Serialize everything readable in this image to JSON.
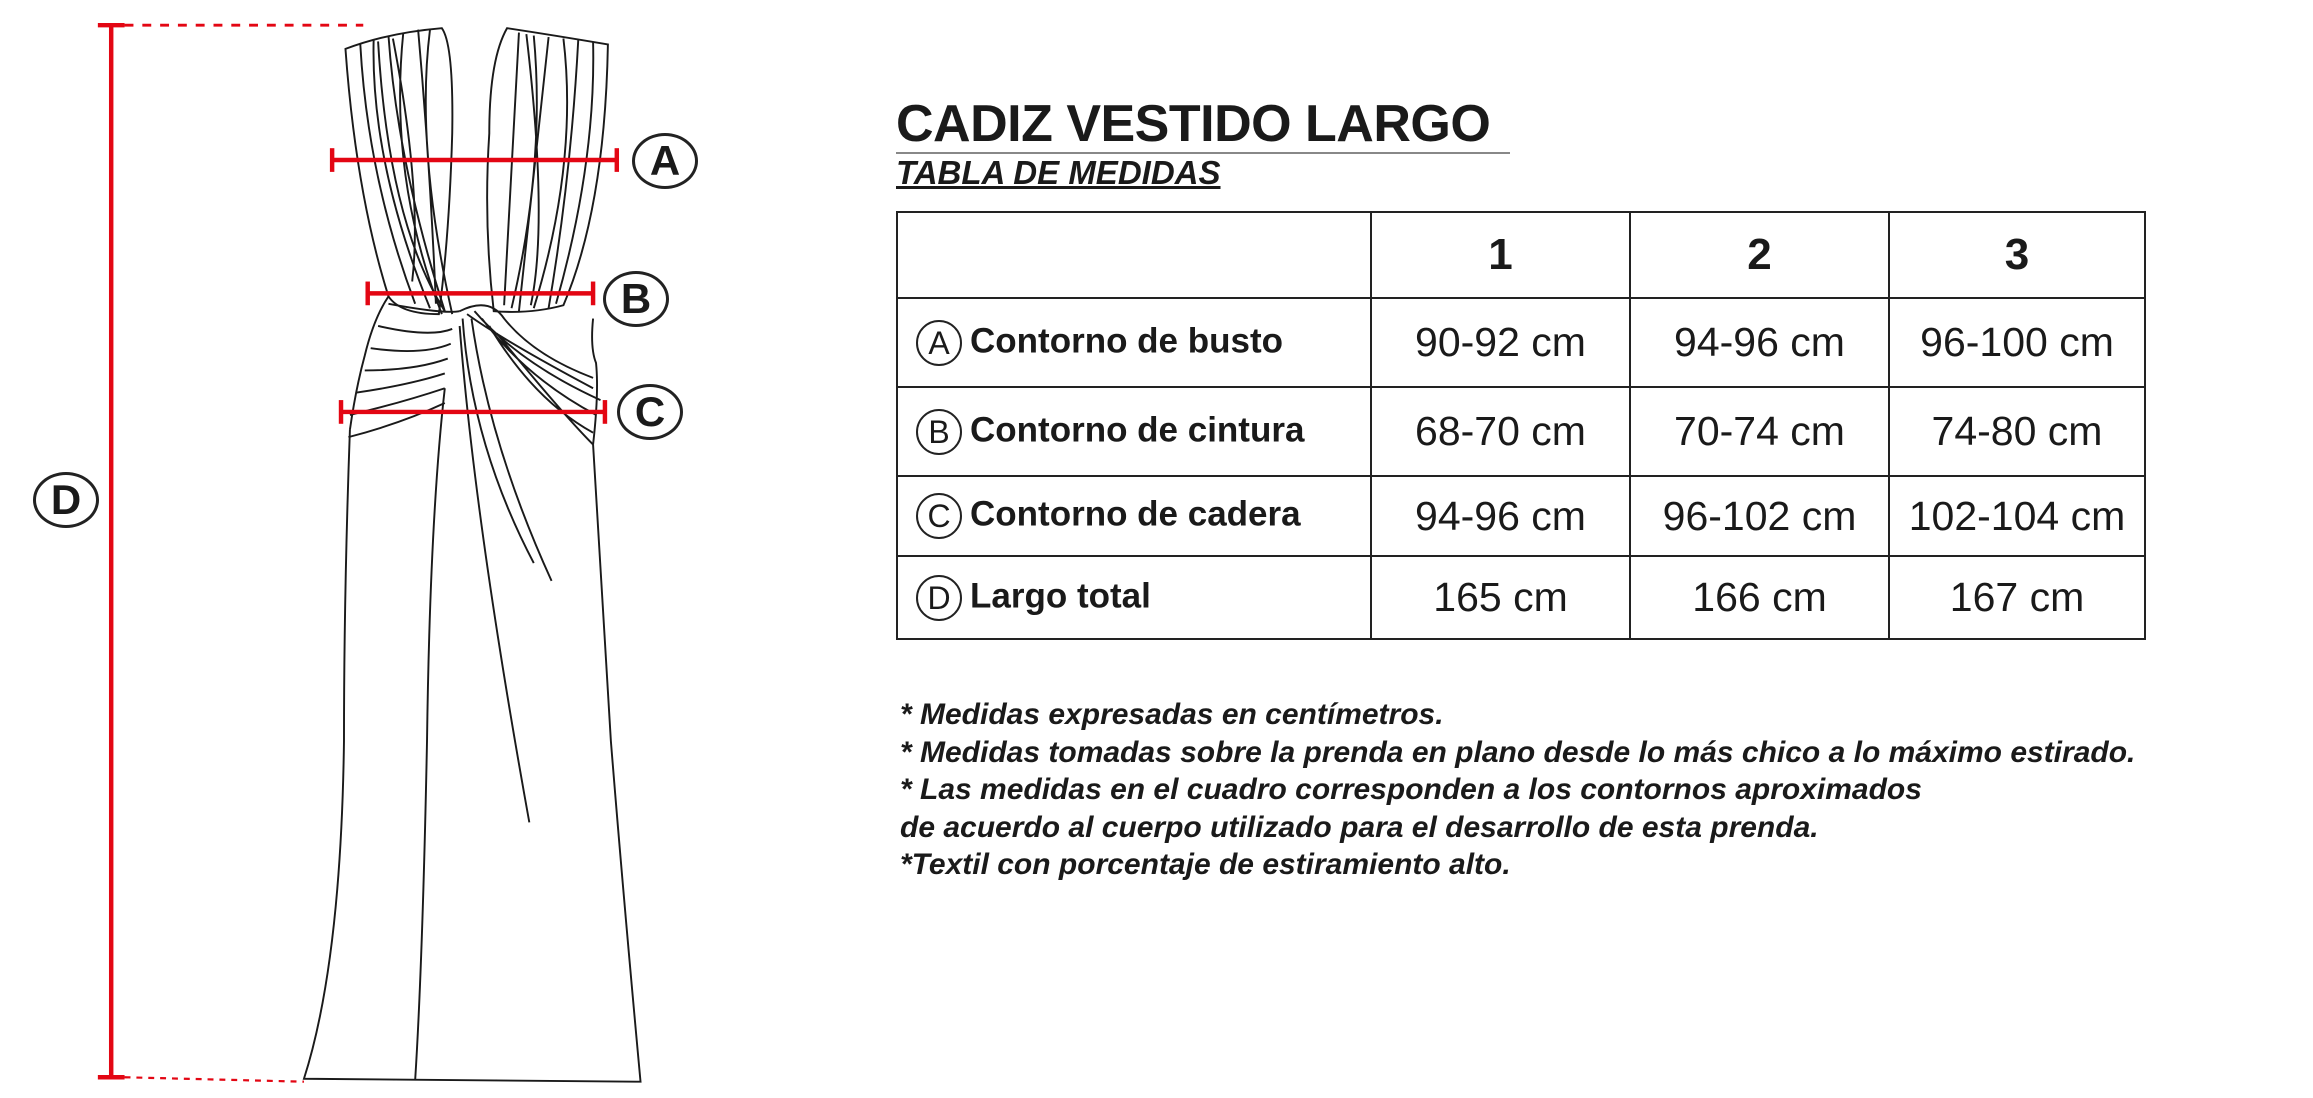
{
  "header": {
    "title": "CADIZ VESTIDO LARGO",
    "subtitle": "TABLA DE MEDIDAS"
  },
  "diagram": {
    "labels": [
      "A",
      "B",
      "C",
      "D"
    ],
    "measure_line_color": "#e30613",
    "outline_color": "#1a1a1a"
  },
  "table": {
    "columns": [
      "",
      "1",
      "2",
      "3"
    ],
    "rows": [
      {
        "key": "A",
        "label": "Contorno de busto",
        "values": [
          "90-92 cm",
          "94-96 cm",
          "96-100 cm"
        ]
      },
      {
        "key": "B",
        "label": "Contorno de cintura",
        "values": [
          "68-70 cm",
          "70-74 cm",
          "74-80 cm"
        ]
      },
      {
        "key": "C",
        "label": "Contorno de cadera",
        "values": [
          "94-96 cm",
          "96-102 cm",
          "102-104 cm"
        ]
      },
      {
        "key": "D",
        "label": "Largo total",
        "values": [
          "165 cm",
          "166 cm",
          "167 cm"
        ]
      }
    ]
  },
  "notes": [
    "* Medidas expresadas en centímetros.",
    "* Medidas tomadas sobre la prenda en plano desde lo más chico a lo máximo estirado.",
    "* Las medidas en el cuadro corresponden a los contornos aproximados",
    "de acuerdo al cuerpo utilizado para el desarrollo de esta prenda.",
    "*Textil con porcentaje de estiramiento alto."
  ]
}
